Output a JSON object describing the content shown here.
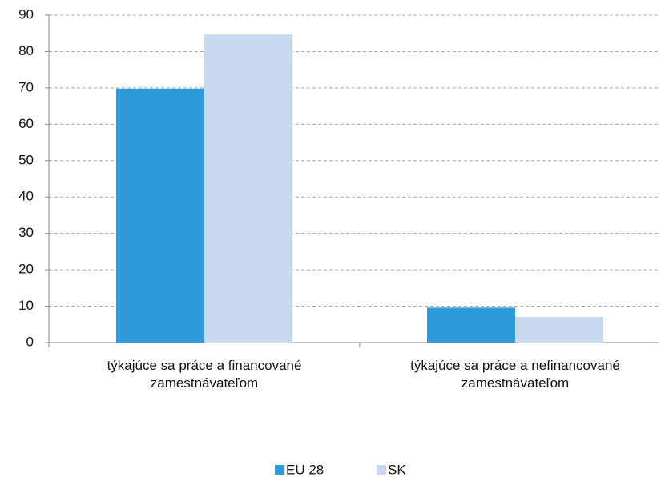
{
  "chart_data": {
    "type": "bar",
    "categories": [
      "týkajúce sa práce a financované zamestnávateľom",
      "týkajúce sa práce a nefinancované zamestnávateľom"
    ],
    "series": [
      {
        "name": "EU 28",
        "color": "#2e9ad9",
        "values": [
          69.8,
          9.6
        ]
      },
      {
        "name": "SK",
        "color": "#c6d9ef",
        "values": [
          84.7,
          7
        ]
      }
    ],
    "ylim": [
      0,
      90
    ],
    "yticks": [
      0,
      10,
      20,
      30,
      40,
      50,
      60,
      70,
      80,
      90
    ],
    "grid": true,
    "legend": "bottom"
  }
}
